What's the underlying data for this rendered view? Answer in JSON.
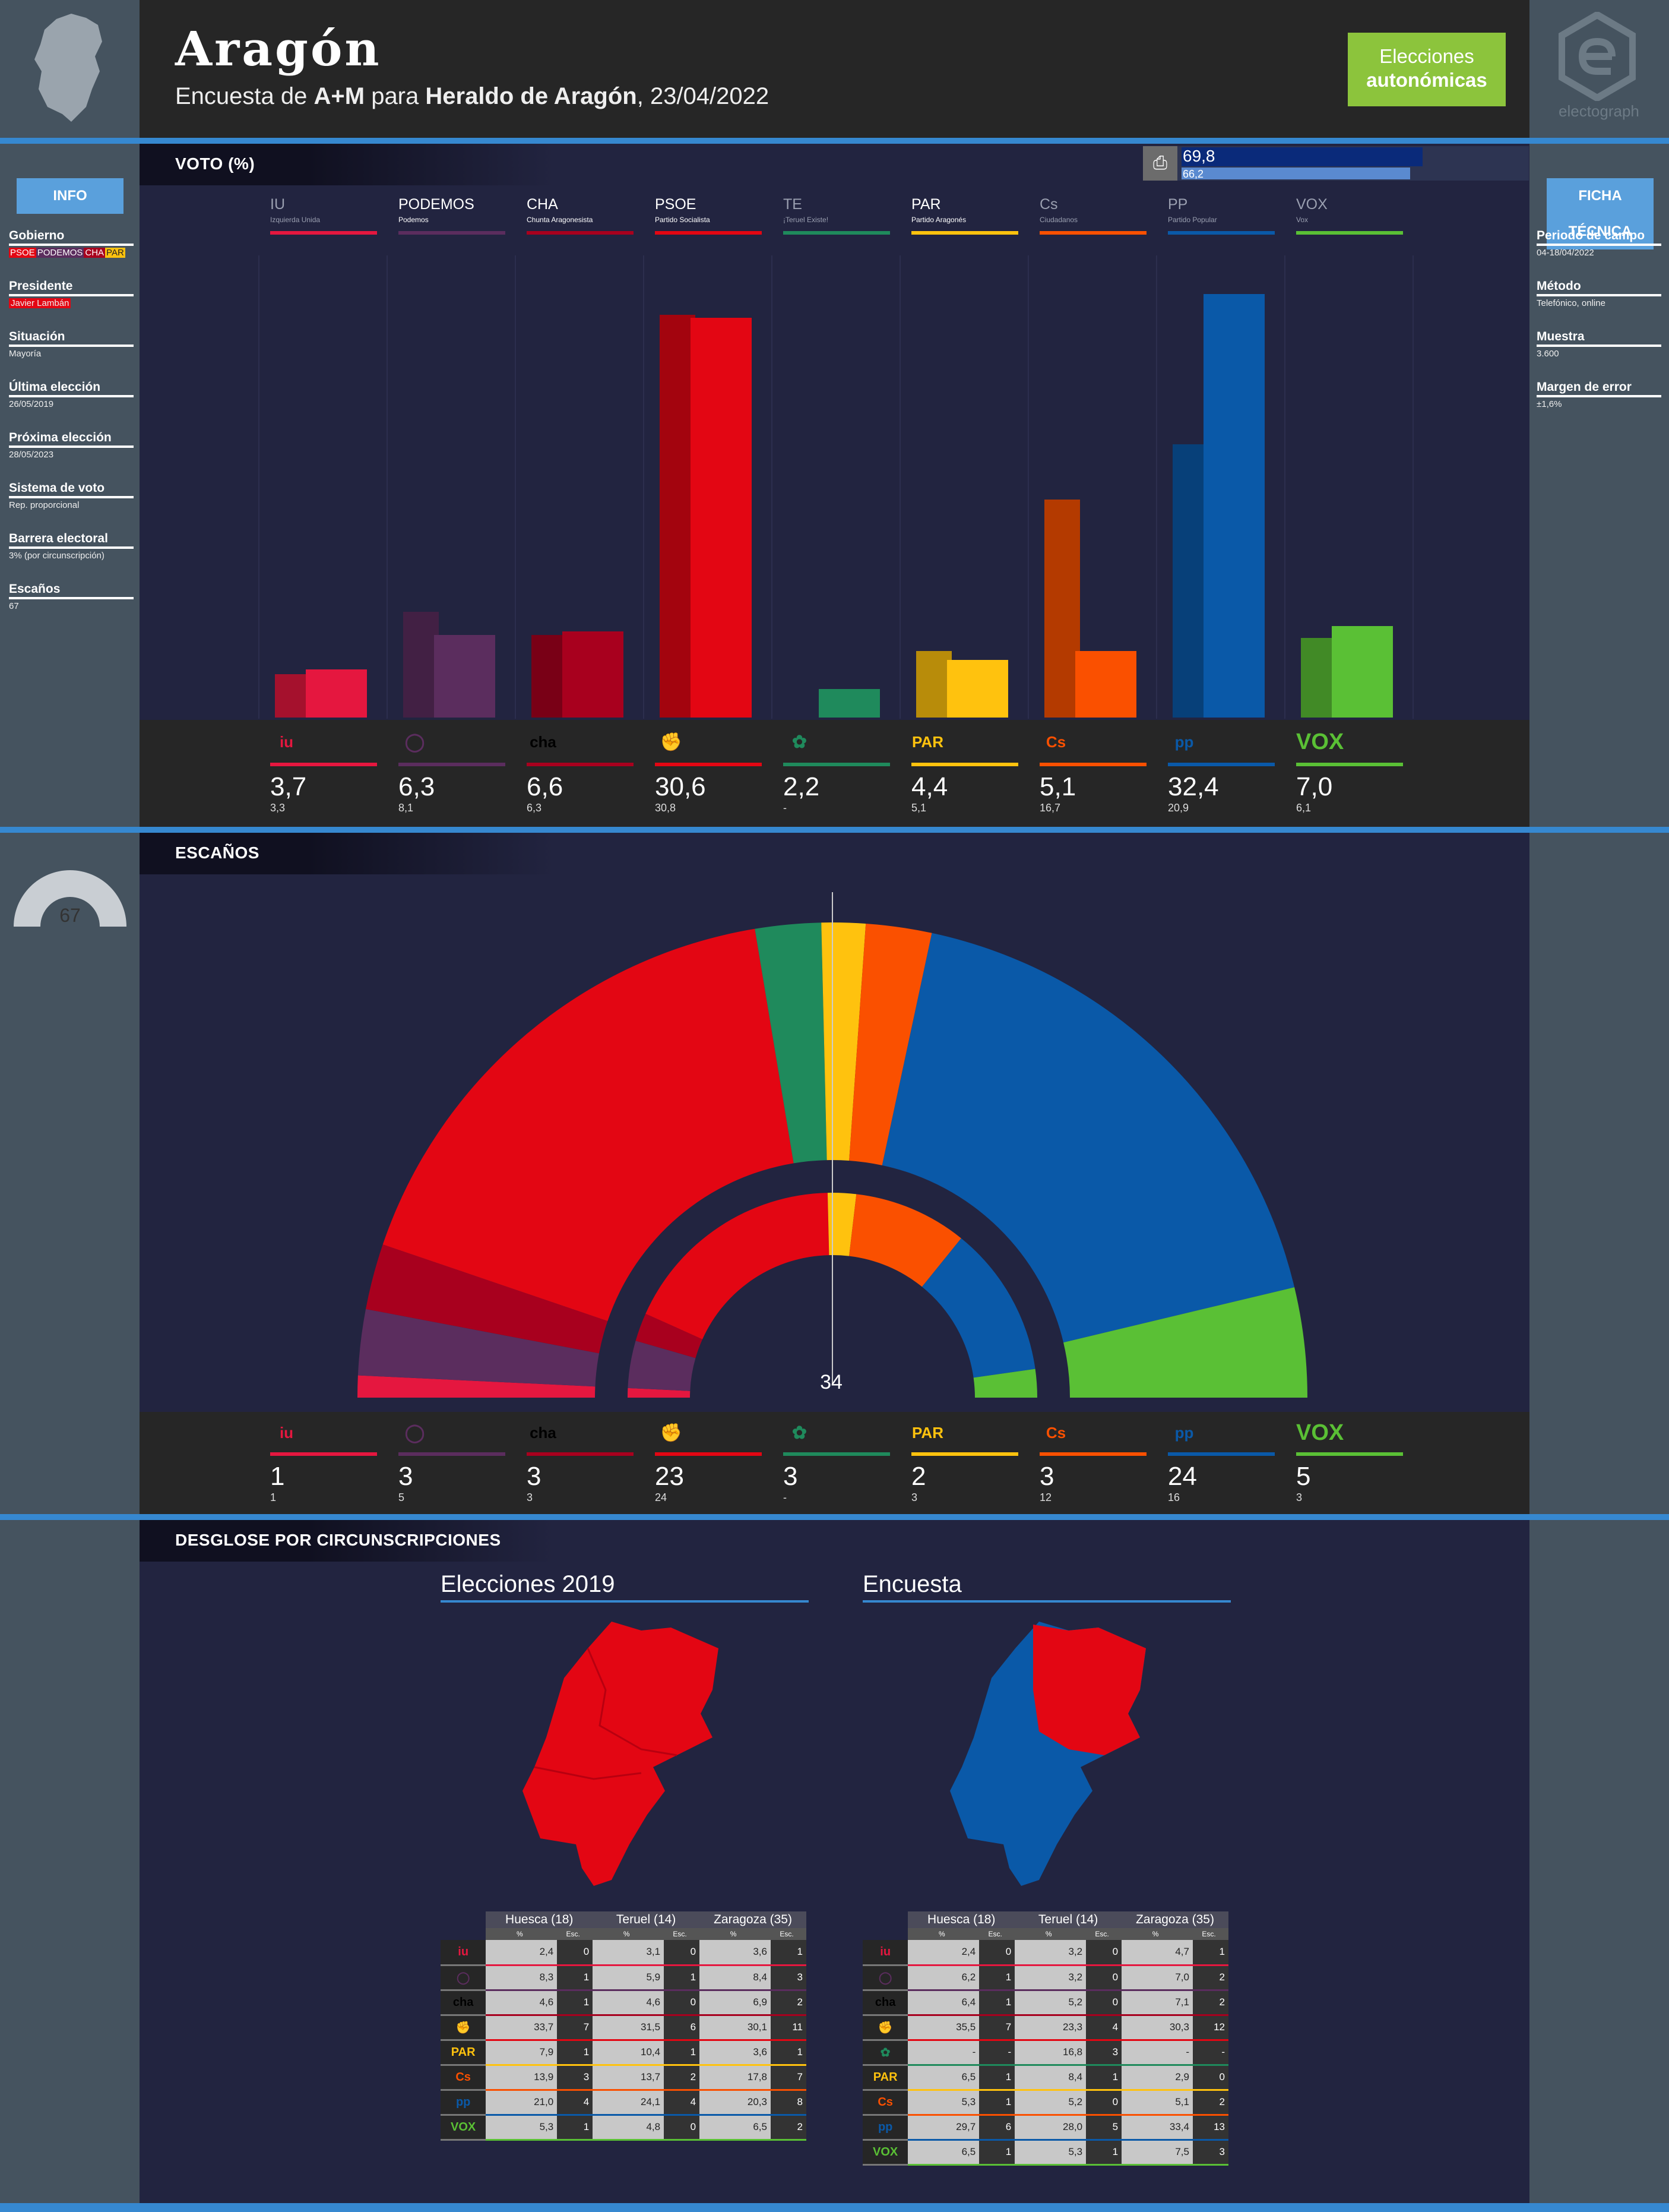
{
  "header": {
    "title": "Aragón",
    "subtitle_pre": "Encuesta de ",
    "pollster": "A+M",
    "subtitle_mid": " para ",
    "client": "Heraldo de Aragón",
    "date": ", 23/04/2022",
    "badge_line1": "Elecciones",
    "badge_line2": "autonómicas",
    "brand": "electograph"
  },
  "info": {
    "head": "INFO",
    "items": [
      {
        "k": "Gobierno",
        "v": ""
      },
      {
        "k": "Presidente",
        "v": "Javier Lambán"
      },
      {
        "k": "Situación",
        "v": "Mayoría"
      },
      {
        "k": "Última elección",
        "v": "26/05/2019"
      },
      {
        "k": "Próxima elección",
        "v": "28/05/2023"
      },
      {
        "k": "Sistema de voto",
        "v": "Rep. proporcional"
      },
      {
        "k": "Barrera electoral",
        "v": "3% (por circunscripción)"
      },
      {
        "k": "Escaños",
        "v": "67"
      }
    ],
    "government_parties": [
      "PSOE",
      "PODEMOS",
      "CHA",
      "PAR"
    ]
  },
  "ficha": {
    "head": "FICHA TÉCNICA",
    "items": [
      {
        "k": "Periodo de campo",
        "v": "04-18/04/2022"
      },
      {
        "k": "Método",
        "v": "Telefónico, online"
      },
      {
        "k": "Muestra",
        "v": "3.600"
      },
      {
        "k": "Margen de error",
        "v": "±1,6%"
      }
    ]
  },
  "sections": {
    "voto": "VOTO (%)",
    "escanos": "ESCAÑOS",
    "desglose": "DESGLOSE POR CIRCUNSCRIPCIONES"
  },
  "participation": {
    "current": "69,8",
    "previous": "66,2"
  },
  "seats_total": "67",
  "majority": "34",
  "colors": {
    "IU": "#e5173f",
    "PODEMOS": "#5b2d5e",
    "CHA": "#a8001e",
    "PSOE": "#e30613",
    "TE": "#1f8a5c",
    "PAR": "#ffc20e",
    "Cs": "#fa5000",
    "PP": "#0a59a8",
    "VOX": "#5ac035"
  },
  "chart_data": [
    {
      "type": "bar",
      "title": "VOTO (%)",
      "categories": [
        "IU",
        "PODEMOS",
        "CHA",
        "PSOE",
        "TE",
        "PAR",
        "Cs",
        "PP",
        "VOX"
      ],
      "full_names": [
        "Izquierda Unida",
        "Podemos",
        "Chunta Aragonesista",
        "Partido Socialista",
        "¡Teruel Existe!",
        "Partido Aragonés",
        "Ciudadanos",
        "Partido Popular",
        "Vox"
      ],
      "series": [
        {
          "name": "Encuesta",
          "values": [
            3.7,
            6.3,
            6.6,
            30.6,
            2.2,
            4.4,
            5.1,
            32.4,
            7.0
          ]
        },
        {
          "name": "Elecciones 2019",
          "values": [
            3.3,
            8.1,
            6.3,
            30.8,
            null,
            5.1,
            16.7,
            20.9,
            6.1
          ]
        }
      ],
      "labels_current": [
        "3,7",
        "6,3",
        "6,6",
        "30,6",
        "2,2",
        "4,4",
        "5,1",
        "32,4",
        "7,0"
      ],
      "labels_previous": [
        "3,3",
        "8,1",
        "6,3",
        "30,8",
        "-",
        "5,1",
        "16,7",
        "20,9",
        "6,1"
      ],
      "ylim": [
        0,
        35
      ]
    },
    {
      "type": "pie",
      "title": "ESCAÑOS",
      "categories": [
        "IU",
        "PODEMOS",
        "CHA",
        "PSOE",
        "TE",
        "PAR",
        "Cs",
        "PP",
        "VOX"
      ],
      "series": [
        {
          "name": "Encuesta",
          "values": [
            1,
            3,
            3,
            23,
            3,
            2,
            3,
            24,
            5
          ]
        },
        {
          "name": "Elecciones 2019",
          "values": [
            1,
            5,
            3,
            24,
            0,
            3,
            12,
            16,
            3
          ]
        }
      ],
      "labels_current": [
        "1",
        "3",
        "3",
        "23",
        "3",
        "2",
        "3",
        "24",
        "5"
      ],
      "labels_previous": [
        "1",
        "5",
        "3",
        "24",
        "-",
        "3",
        "12",
        "16",
        "3"
      ]
    }
  ],
  "party_logos": {
    "IU": "iu",
    "PODEMOS": "◯",
    "CHA": "cha",
    "PSOE": "✊",
    "TE": "✿",
    "PAR": "PAR",
    "Cs": "Cs",
    "PP": "pp",
    "VOX": "VOX"
  },
  "desglose": {
    "title_2019": "Elecciones 2019",
    "title_poll": "Encuesta",
    "cols": [
      "Huesca (18)",
      "Teruel (14)",
      "Zaragoza (35)"
    ],
    "sub_pct": "%",
    "sub_esc": "Esc.",
    "table_2019": [
      {
        "p": "IU",
        "r": [
          "2,4",
          "0",
          "3,1",
          "0",
          "3,6",
          "1"
        ]
      },
      {
        "p": "PODEMOS",
        "r": [
          "8,3",
          "1",
          "5,9",
          "1",
          "8,4",
          "3"
        ]
      },
      {
        "p": "CHA",
        "r": [
          "4,6",
          "1",
          "4,6",
          "0",
          "6,9",
          "2"
        ]
      },
      {
        "p": "PSOE",
        "r": [
          "33,7",
          "7",
          "31,5",
          "6",
          "30,1",
          "11"
        ]
      },
      {
        "p": "PAR",
        "r": [
          "7,9",
          "1",
          "10,4",
          "1",
          "3,6",
          "1"
        ]
      },
      {
        "p": "Cs",
        "r": [
          "13,9",
          "3",
          "13,7",
          "2",
          "17,8",
          "7"
        ]
      },
      {
        "p": "PP",
        "r": [
          "21,0",
          "4",
          "24,1",
          "4",
          "20,3",
          "8"
        ]
      },
      {
        "p": "VOX",
        "r": [
          "5,3",
          "1",
          "4,8",
          "0",
          "6,5",
          "2"
        ]
      }
    ],
    "table_poll": [
      {
        "p": "IU",
        "r": [
          "2,4",
          "0",
          "3,2",
          "0",
          "4,7",
          "1"
        ]
      },
      {
        "p": "PODEMOS",
        "r": [
          "6,2",
          "1",
          "3,2",
          "0",
          "7,0",
          "2"
        ]
      },
      {
        "p": "CHA",
        "r": [
          "6,4",
          "1",
          "5,2",
          "0",
          "7,1",
          "2"
        ]
      },
      {
        "p": "PSOE",
        "r": [
          "35,5",
          "7",
          "23,3",
          "4",
          "30,3",
          "12"
        ]
      },
      {
        "p": "TE",
        "r": [
          "-",
          "-",
          "16,8",
          "3",
          "-",
          "-"
        ]
      },
      {
        "p": "PAR",
        "r": [
          "6,5",
          "1",
          "8,4",
          "1",
          "2,9",
          "0"
        ]
      },
      {
        "p": "Cs",
        "r": [
          "5,3",
          "1",
          "5,2",
          "0",
          "5,1",
          "2"
        ]
      },
      {
        "p": "PP",
        "r": [
          "29,7",
          "6",
          "28,0",
          "5",
          "33,4",
          "13"
        ]
      },
      {
        "p": "VOX",
        "r": [
          "6,5",
          "1",
          "5,3",
          "1",
          "7,5",
          "3"
        ]
      }
    ]
  }
}
